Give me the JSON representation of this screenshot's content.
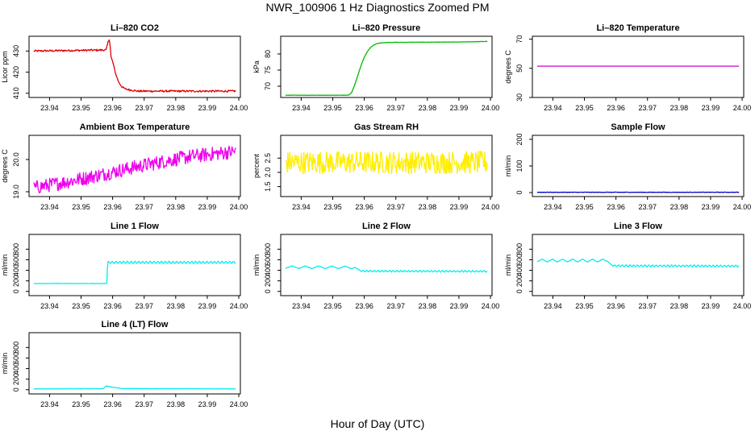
{
  "page": {
    "title": "NWR_100906  1 Hz Diagnostics Zoomed PM",
    "xlabel": "Hour of Day (UTC)"
  },
  "colors": {
    "axis": "#000000"
  },
  "chart_data": [
    {
      "id": "co2",
      "type": "line",
      "title": "Li–820 CO2",
      "ylabel": "Licor ppm",
      "color": "#dd0000",
      "xlim": [
        23.9335,
        24.0005
      ],
      "ylim": [
        408,
        437
      ],
      "xticks": [
        23.94,
        23.95,
        23.96,
        23.97,
        23.98,
        23.99,
        24.0
      ],
      "xtick_labels": [
        "23.94",
        "23.95",
        "23.96",
        "23.97",
        "23.98",
        "23.99",
        "24.00"
      ],
      "yticks": [
        410,
        420,
        430
      ],
      "ytick_labels": [
        "410",
        "420",
        "430"
      ],
      "x": [
        23.935,
        23.958,
        23.9585,
        23.959,
        23.9595,
        23.96,
        23.9605,
        23.961,
        23.962,
        23.963,
        23.964,
        23.966,
        23.968,
        23.999
      ],
      "y": [
        430,
        430.5,
        434,
        436,
        427,
        425,
        422,
        419,
        415,
        413,
        412,
        411.5,
        411,
        411
      ],
      "noise": 0.45
    },
    {
      "id": "pressure",
      "type": "line",
      "title": "Li–820 Pressure",
      "ylabel": "kPa",
      "color": "#00bb00",
      "xlim": [
        23.9335,
        24.0005
      ],
      "ylim": [
        66.5,
        85.5
      ],
      "xticks": [
        23.94,
        23.95,
        23.96,
        23.97,
        23.98,
        23.99,
        24.0
      ],
      "xtick_labels": [
        "23.94",
        "23.95",
        "23.96",
        "23.97",
        "23.98",
        "23.99",
        "24.00"
      ],
      "yticks": [
        70,
        75,
        80
      ],
      "ytick_labels": [
        "70",
        "75",
        "80"
      ],
      "x": [
        23.935,
        23.955,
        23.956,
        23.957,
        23.958,
        23.959,
        23.96,
        23.961,
        23.962,
        23.963,
        23.964,
        23.965,
        23.966,
        23.967,
        23.968,
        23.99,
        23.999
      ],
      "y": [
        67.2,
        67.2,
        68,
        70.5,
        73.5,
        76.5,
        79,
        80.8,
        82,
        82.8,
        83.2,
        83.4,
        83.5,
        83.55,
        83.6,
        83.7,
        83.9
      ],
      "noise": 0.05
    },
    {
      "id": "temperature",
      "type": "line",
      "title": "Li–820 Temperature",
      "ylabel": "degrees C",
      "color": "#cc00cc",
      "xlim": [
        23.9335,
        24.0005
      ],
      "ylim": [
        30,
        72
      ],
      "xticks": [
        23.94,
        23.95,
        23.96,
        23.97,
        23.98,
        23.99,
        24.0
      ],
      "xtick_labels": [
        "23.94",
        "23.95",
        "23.96",
        "23.97",
        "23.98",
        "23.99",
        "24.00"
      ],
      "yticks": [
        30,
        50,
        70
      ],
      "ytick_labels": [
        "30",
        "50",
        "70"
      ],
      "x": [
        23.935,
        23.999
      ],
      "y": [
        51.5,
        51.5
      ],
      "noise": 0
    },
    {
      "id": "ambient-box-temp",
      "type": "line",
      "title": "Ambient Box Temperature",
      "ylabel": "degrees C",
      "color": "#ee00ee",
      "xlim": [
        23.9335,
        24.0005
      ],
      "ylim": [
        18.85,
        20.75
      ],
      "xticks": [
        23.94,
        23.95,
        23.96,
        23.97,
        23.98,
        23.99,
        24.0
      ],
      "xtick_labels": [
        "23.94",
        "23.95",
        "23.96",
        "23.97",
        "23.98",
        "23.99",
        "24.00"
      ],
      "yticks": [
        19.0,
        20.0
      ],
      "ytick_labels": [
        "19.0",
        "20.0"
      ],
      "x": [
        23.935,
        23.945,
        23.955,
        23.965,
        23.975,
        23.985,
        23.999
      ],
      "y": [
        19.12,
        19.3,
        19.5,
        19.72,
        19.92,
        20.1,
        20.25
      ],
      "noise": 0.22
    },
    {
      "id": "gas-stream-rh",
      "type": "line",
      "title": "Gas Stream RH",
      "ylabel": "percent",
      "color": "#ffee00",
      "xlim": [
        23.9335,
        24.0005
      ],
      "ylim": [
        1.15,
        3.3
      ],
      "xticks": [
        23.94,
        23.95,
        23.96,
        23.97,
        23.98,
        23.99,
        24.0
      ],
      "xtick_labels": [
        "23.94",
        "23.95",
        "23.96",
        "23.97",
        "23.98",
        "23.99",
        "24.00"
      ],
      "yticks": [
        1.5,
        2.0,
        2.5
      ],
      "ytick_labels": [
        "1.5",
        "2.0",
        "2.5"
      ],
      "x": [
        23.935,
        23.999
      ],
      "y": [
        2.35,
        2.35
      ],
      "noise": 0.4
    },
    {
      "id": "sample-flow",
      "type": "line",
      "title": "Sample Flow",
      "ylabel": "ml/min",
      "color": "#0000cc",
      "xlim": [
        23.9335,
        24.0005
      ],
      "ylim": [
        -15,
        215
      ],
      "xticks": [
        23.94,
        23.95,
        23.96,
        23.97,
        23.98,
        23.99,
        24.0
      ],
      "xtick_labels": [
        "23.94",
        "23.95",
        "23.96",
        "23.97",
        "23.98",
        "23.99",
        "24.00"
      ],
      "yticks": [
        0,
        100,
        200
      ],
      "ytick_labels": [
        "0",
        "100",
        "200"
      ],
      "x": [
        23.935,
        23.999
      ],
      "y": [
        1,
        1
      ],
      "noise": 0.9
    },
    {
      "id": "line-1-flow",
      "type": "line",
      "title": "Line 1 Flow",
      "ylabel": "ml/min",
      "color": "#00eeee",
      "xlim": [
        23.9335,
        24.0005
      ],
      "ylim": [
        -80,
        1080
      ],
      "xticks": [
        23.94,
        23.95,
        23.96,
        23.97,
        23.98,
        23.99,
        24.0
      ],
      "xtick_labels": [
        "23.94",
        "23.95",
        "23.96",
        "23.97",
        "23.98",
        "23.99",
        "24.00"
      ],
      "yticks": [
        0,
        200,
        400,
        600,
        800
      ],
      "ytick_labels": [
        "0",
        "200",
        "400",
        "600",
        "800"
      ],
      "x": [
        23.935,
        23.9582,
        23.9584,
        23.999
      ],
      "y": [
        150,
        150,
        550,
        550
      ],
      "osc": {
        "start": 23.9584,
        "amplitude": 20,
        "period": 0.0012
      },
      "noise": 3
    },
    {
      "id": "line-2-flow",
      "type": "line",
      "title": "Line 2 Flow",
      "ylabel": "ml/min",
      "color": "#00eeee",
      "xlim": [
        23.9335,
        24.0005
      ],
      "ylim": [
        -80,
        1080
      ],
      "xticks": [
        23.94,
        23.95,
        23.96,
        23.97,
        23.98,
        23.99,
        24.0
      ],
      "xtick_labels": [
        "23.94",
        "23.95",
        "23.96",
        "23.97",
        "23.98",
        "23.99",
        "24.00"
      ],
      "yticks": [
        0,
        200,
        400,
        600,
        800
      ],
      "ytick_labels": [
        "0",
        "200",
        "400",
        "600",
        "800"
      ],
      "x": [
        23.935,
        23.957,
        23.959,
        23.999
      ],
      "y": [
        460,
        455,
        385,
        380
      ],
      "osc_segments": [
        {
          "start": 23.935,
          "end": 23.957,
          "amplitude": 25,
          "period": 0.0042
        },
        {
          "start": 23.959,
          "end": 23.999,
          "amplitude": 17,
          "period": 0.0012
        }
      ],
      "noise": 2
    },
    {
      "id": "line-3-flow",
      "type": "line",
      "title": "Line 3 Flow",
      "ylabel": "ml/min",
      "color": "#00eeee",
      "xlim": [
        23.9335,
        24.0005
      ],
      "ylim": [
        -80,
        1080
      ],
      "xticks": [
        23.94,
        23.95,
        23.96,
        23.97,
        23.98,
        23.99,
        24.0
      ],
      "xtick_labels": [
        "23.94",
        "23.95",
        "23.96",
        "23.97",
        "23.98",
        "23.99",
        "24.00"
      ],
      "yticks": [
        0,
        200,
        400,
        600,
        800
      ],
      "ytick_labels": [
        "0",
        "200",
        "400",
        "600",
        "800"
      ],
      "x": [
        23.935,
        23.957,
        23.959,
        23.999
      ],
      "y": [
        585,
        585,
        485,
        480
      ],
      "osc_segments": [
        {
          "start": 23.935,
          "end": 23.957,
          "amplitude": 28,
          "period": 0.0032
        },
        {
          "start": 23.959,
          "end": 23.999,
          "amplitude": 20,
          "period": 0.0012
        }
      ],
      "noise": 2
    },
    {
      "id": "line-4-lt-flow",
      "type": "line",
      "title": "Line 4 (LT) Flow",
      "ylabel": "ml/min",
      "color": "#00eeee",
      "xlim": [
        23.9335,
        24.0005
      ],
      "ylim": [
        -80,
        1080
      ],
      "xticks": [
        23.94,
        23.95,
        23.96,
        23.97,
        23.98,
        23.99,
        24.0
      ],
      "xtick_labels": [
        "23.94",
        "23.95",
        "23.96",
        "23.97",
        "23.98",
        "23.99",
        "24.00"
      ],
      "yticks": [
        0,
        200,
        400,
        600,
        800
      ],
      "ytick_labels": [
        "0",
        "200",
        "400",
        "600",
        "800"
      ],
      "x": [
        23.935,
        23.957,
        23.958,
        23.96,
        23.963,
        23.999
      ],
      "y": [
        15,
        18,
        70,
        45,
        22,
        15
      ],
      "noise": 3
    }
  ]
}
